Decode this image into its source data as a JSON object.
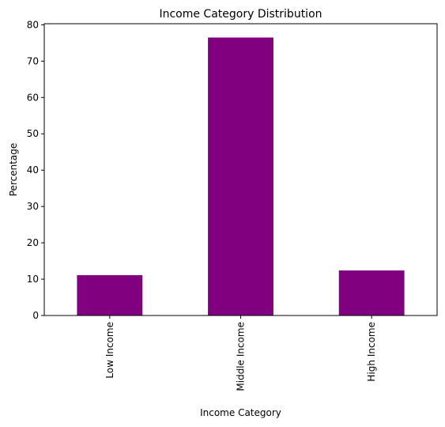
{
  "chart_data": {
    "type": "bar",
    "title": "Income Category Distribution",
    "xlabel": "Income Category",
    "ylabel": "Percentage",
    "categories": [
      "Low Income",
      "Middle Income",
      "High Income"
    ],
    "values": [
      11.1,
      76.5,
      12.4
    ],
    "ylim": [
      0,
      80.3
    ],
    "yticks": [
      0,
      10,
      20,
      30,
      40,
      50,
      60,
      70,
      80
    ],
    "bar_color": "#800080",
    "grid": false,
    "legend": "none"
  }
}
